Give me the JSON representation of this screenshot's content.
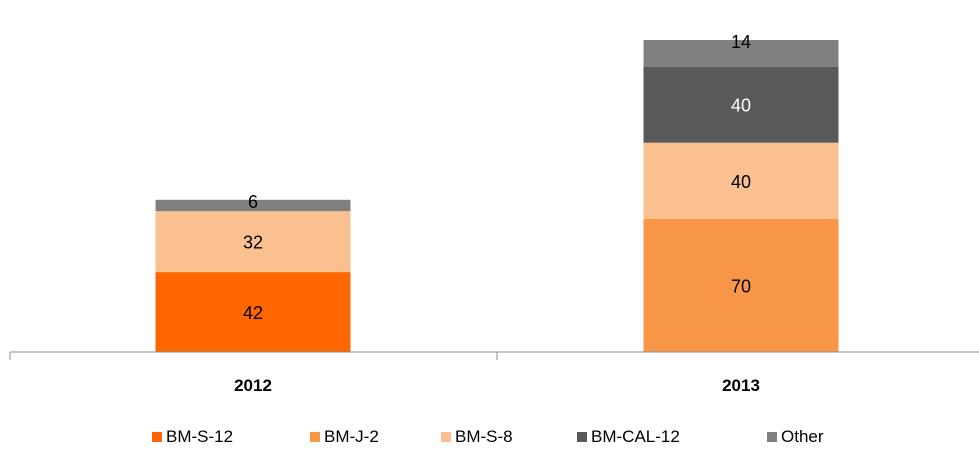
{
  "chart_data": {
    "type": "bar",
    "stacked": true,
    "categories": [
      "2012",
      "2013"
    ],
    "series": [
      {
        "name": "BM-S-12",
        "values": [
          42,
          0
        ],
        "color": "#ff6600"
      },
      {
        "name": "BM-J-2",
        "values": [
          0,
          70
        ],
        "color": "#f79646"
      },
      {
        "name": "BM-S-8",
        "values": [
          32,
          40
        ],
        "color": "#fac090"
      },
      {
        "name": "BM-CAL-12",
        "values": [
          0,
          40
        ],
        "color": "#595959"
      },
      {
        "name": "Other",
        "values": [
          6,
          14
        ],
        "color": "#808080"
      }
    ],
    "title": "",
    "xlabel": "",
    "ylabel": "",
    "ylim": [
      0,
      164
    ],
    "grid": false,
    "legend_position": "bottom"
  }
}
